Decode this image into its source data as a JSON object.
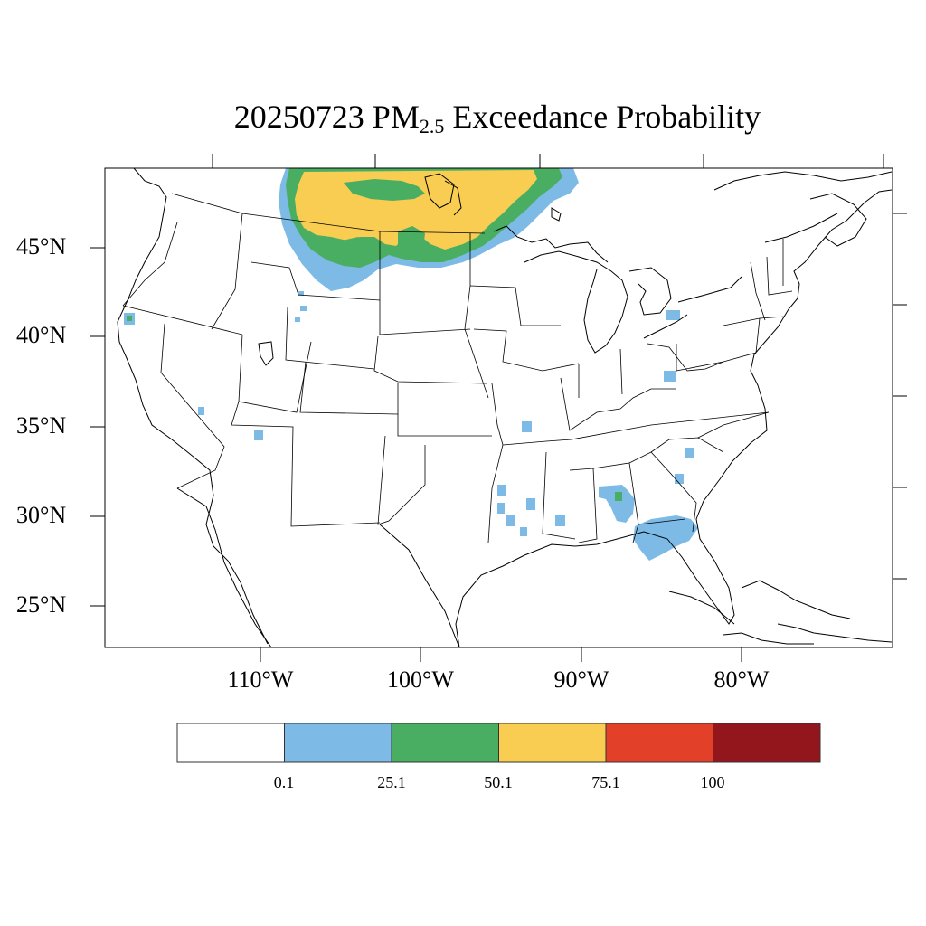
{
  "title": {
    "prefix": "20250723 PM",
    "subscript": "2.5",
    "suffix": " Exceedance Probability"
  },
  "lat_labels": [
    "45°N",
    "40°N",
    "35°N",
    "30°N",
    "25°N"
  ],
  "lon_labels": [
    "110°W",
    "100°W",
    "90°W",
    "80°W"
  ],
  "colorbar": {
    "labels": [
      "0.1",
      "25.1",
      "50.1",
      "75.1",
      "100"
    ],
    "colors": [
      "#ffffff",
      "#7dbbe6",
      "#4aae62",
      "#f8cd52",
      "#e24028",
      "#92161c"
    ]
  },
  "colors": {
    "blue": "#7dbbe6",
    "green": "#4aae62",
    "yellow": "#f8cd52"
  }
}
